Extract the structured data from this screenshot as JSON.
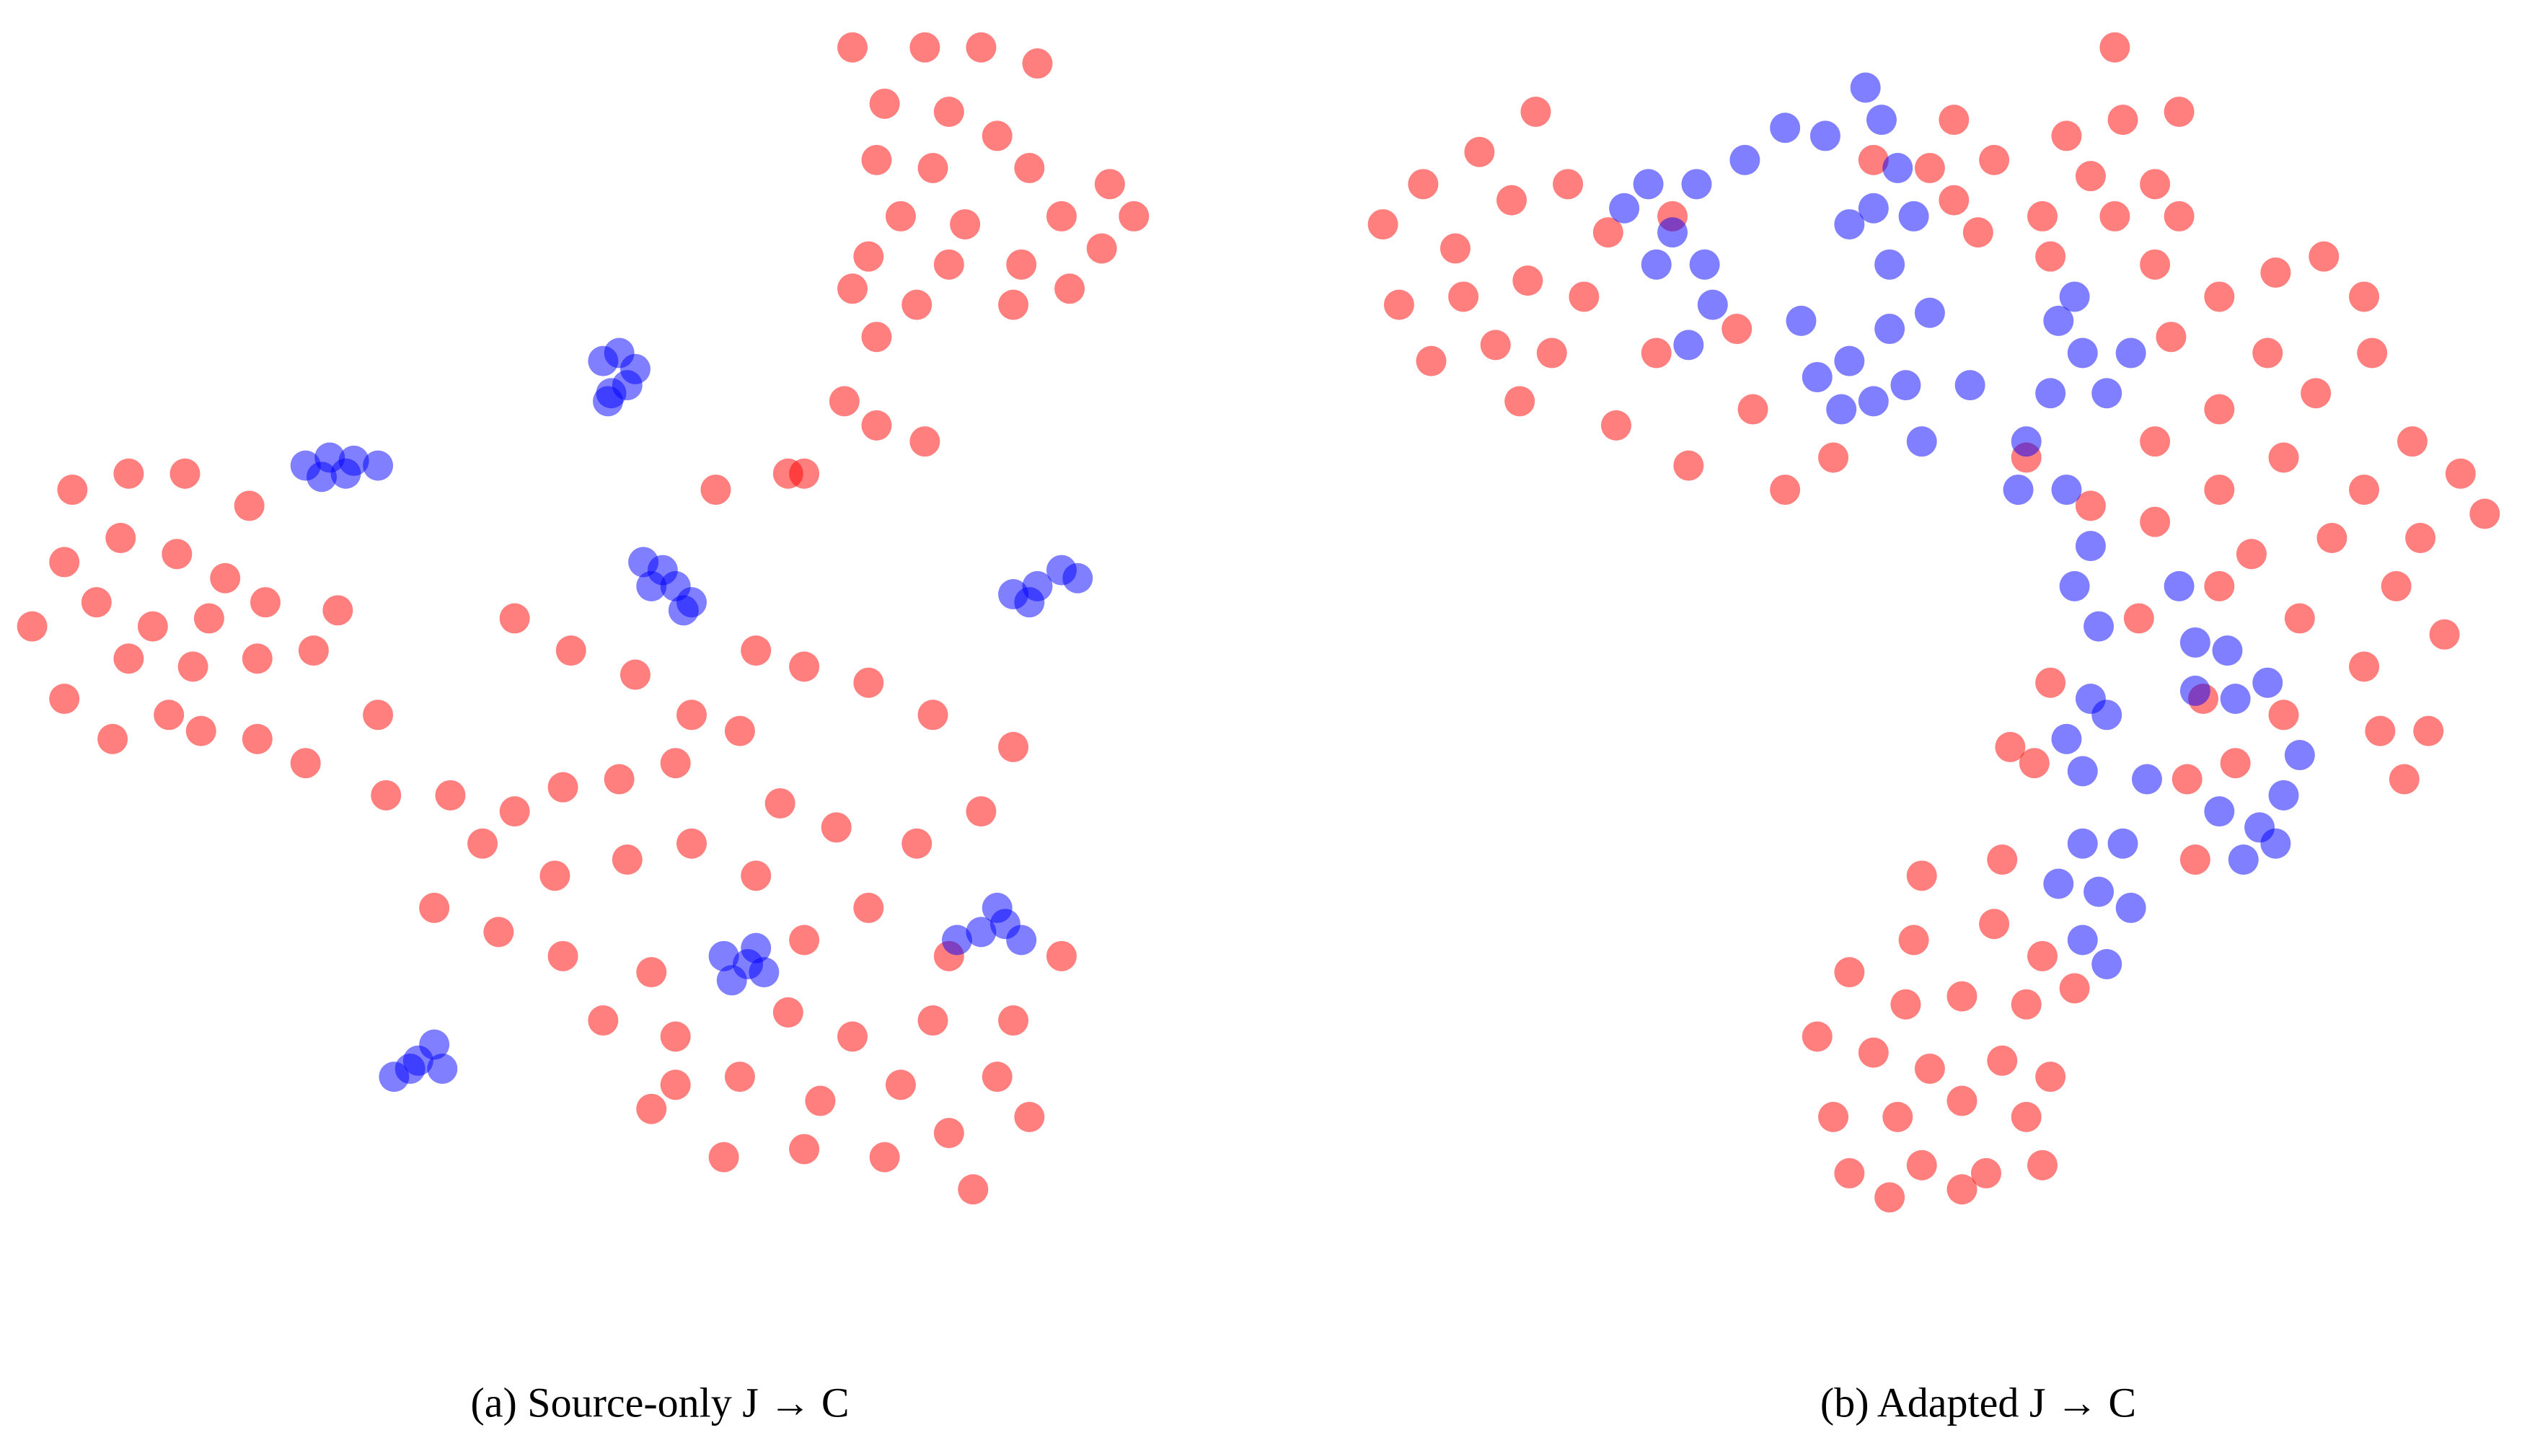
{
  "chart_data": [
    {
      "type": "scatter",
      "title": "(a) Source-only   J → C",
      "xlim": [
        0,
        720
      ],
      "ylim": [
        0,
        800
      ],
      "opacity": 0.5,
      "series": [
        {
          "color": "#ff0000",
          "x": [
            530,
            575,
            610,
            645,
            550,
            590,
            620,
            545,
            580,
            640,
            690,
            560,
            600,
            660,
            705,
            540,
            590,
            635,
            685,
            570,
            630,
            665,
            530,
            545,
            525,
            545,
            575,
            500,
            20,
            45,
            80,
            115,
            155,
            40,
            75,
            110,
            140,
            60,
            95,
            130,
            165,
            210,
            40,
            80,
            120,
            160,
            195,
            235,
            70,
            105,
            160,
            190,
            125,
            240,
            280,
            320,
            350,
            385,
            420,
            460,
            500,
            445,
            490,
            320,
            355,
            395,
            430,
            470,
            540,
            580,
            630,
            300,
            345,
            390,
            430,
            470,
            520,
            570,
            610,
            270,
            310,
            350,
            405,
            500,
            540,
            590,
            660,
            375,
            420,
            490,
            530,
            580,
            630,
            420,
            460,
            510,
            560,
            620,
            450,
            500,
            550,
            590,
            640,
            605,
            485,
            405
          ],
          "values": [
            775,
            775,
            775,
            765,
            740,
            735,
            720,
            705,
            700,
            700,
            690,
            670,
            665,
            670,
            670,
            645,
            640,
            640,
            650,
            615,
            615,
            625,
            625,
            595,
            555,
            540,
            530,
            510,
            415,
            500,
            510,
            510,
            490,
            455,
            470,
            460,
            445,
            430,
            415,
            420,
            430,
            425,
            370,
            395,
            390,
            395,
            400,
            360,
            345,
            360,
            345,
            330,
            350,
            310,
            310,
            300,
            315,
            320,
            330,
            350,
            390,
            500,
            510,
            420,
            400,
            385,
            360,
            400,
            380,
            360,
            340,
            280,
            260,
            270,
            280,
            260,
            290,
            280,
            300,
            240,
            225,
            210,
            200,
            220,
            240,
            210,
            210,
            170,
            160,
            175,
            160,
            170,
            170,
            130,
            135,
            120,
            130,
            135,
            85,
            90,
            85,
            100,
            110,
            65,
            305,
            115
          ]
        },
        {
          "color": "#0000ff",
          "x": [
            375,
            385,
            395,
            380,
            390,
            378,
            190,
            205,
            220,
            235,
            200,
            215,
            400,
            412,
            420,
            430,
            405,
            425,
            630,
            645,
            660,
            670,
            640,
            450,
            465,
            475,
            455,
            470,
            595,
            610,
            625,
            620,
            635,
            245,
            260,
            270,
            275,
            255
          ],
          "values": [
            580,
            585,
            575,
            560,
            565,
            555,
            515,
            520,
            518,
            515,
            508,
            510,
            455,
            450,
            440,
            430,
            440,
            425,
            435,
            440,
            450,
            445,
            430,
            210,
            205,
            200,
            195,
            215,
            220,
            225,
            230,
            240,
            220,
            135,
            145,
            155,
            140,
            140
          ]
        }
      ]
    },
    {
      "type": "scatter",
      "title": "(b) Adapted      J → C",
      "xlim": [
        0,
        720
      ],
      "ylim": [
        0,
        800
      ],
      "opacity": 0.5,
      "series": [
        {
          "color": "#ff0000",
          "x": [
            20,
            45,
            80,
            115,
            65,
            100,
            135,
            160,
            30,
            70,
            110,
            145,
            50,
            90,
            125,
            105,
            165,
            200,
            190,
            210,
            250,
            270,
            300,
            240,
            375,
            360,
            400,
            325,
            390,
            375,
            475,
            445,
            480,
            515,
            460,
            500,
            430,
            475,
            515,
            435,
            500,
            540,
            575,
            605,
            630,
            510,
            570,
            635,
            600,
            540,
            500,
            660,
            690,
            705,
            665,
            630,
            580,
            540,
            500,
            460,
            420,
            560,
            610,
            650,
            680,
            630,
            590,
            540,
            580,
            640,
            670,
            655,
            530,
            520,
            525,
            550,
            490,
            435,
            425,
            410,
            405,
            355,
            350,
            400,
            430,
            310,
            345,
            380,
            420,
            290,
            325,
            360,
            405,
            435,
            300,
            340,
            380,
            420,
            310,
            355,
            395,
            430,
            335,
            380,
            450
          ],
          "values": [
            665,
            690,
            710,
            735,
            650,
            680,
            690,
            660,
            615,
            620,
            630,
            620,
            580,
            590,
            585,
            555,
            540,
            670,
            585,
            515,
            550,
            500,
            520,
            600,
            730,
            700,
            705,
            705,
            660,
            680,
            775,
            720,
            730,
            735,
            695,
            690,
            670,
            670,
            670,
            645,
            640,
            620,
            635,
            645,
            620,
            595,
            585,
            585,
            560,
            550,
            530,
            530,
            510,
            485,
            470,
            500,
            520,
            500,
            480,
            490,
            520,
            460,
            470,
            440,
            410,
            390,
            420,
            440,
            360,
            350,
            350,
            320,
            370,
            320,
            270,
            330,
            420,
            380,
            330,
            340,
            270,
            260,
            220,
            230,
            210,
            200,
            180,
            185,
            180,
            160,
            150,
            140,
            145,
            135,
            110,
            110,
            120,
            110,
            75,
            80,
            75,
            80,
            60,
            65,
            190
          ]
        },
        {
          "color": "#0000ff",
          "x": [
            170,
            185,
            200,
            220,
            215,
            190,
            225,
            210,
            245,
            270,
            295,
            320,
            330,
            340,
            310,
            325,
            335,
            350,
            280,
            290,
            310,
            325,
            345,
            305,
            335,
            360,
            385,
            355,
            420,
            440,
            455,
            470,
            485,
            450,
            435,
            445,
            415,
            460,
            450,
            465,
            515,
            525,
            545,
            570,
            550,
            525,
            460,
            445,
            455,
            470,
            495,
            480,
            455,
            440,
            465,
            485,
            455,
            470,
            540,
            565,
            580,
            590,
            555,
            575
          ],
          "values": [
            675,
            690,
            660,
            640,
            690,
            640,
            615,
            590,
            705,
            725,
            720,
            750,
            730,
            700,
            665,
            675,
            640,
            670,
            605,
            570,
            580,
            555,
            565,
            550,
            600,
            610,
            565,
            530,
            530,
            605,
            585,
            560,
            585,
            620,
            560,
            500,
            500,
            465,
            440,
            415,
            440,
            405,
            400,
            380,
            370,
            375,
            370,
            345,
            325,
            360,
            320,
            280,
            280,
            255,
            250,
            240,
            220,
            205,
            300,
            290,
            310,
            335,
            270,
            280
          ]
        }
      ]
    }
  ]
}
